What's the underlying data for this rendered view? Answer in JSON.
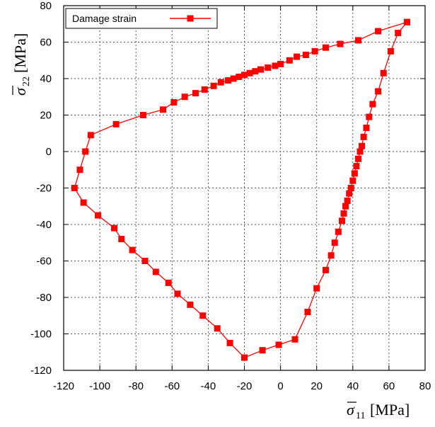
{
  "chart_data": {
    "type": "line",
    "xlim": [
      -120,
      80
    ],
    "ylim": [
      -120,
      80
    ],
    "x_ticks": [
      -120,
      -100,
      -80,
      -60,
      -40,
      -20,
      0,
      20,
      40,
      60,
      80
    ],
    "y_ticks": [
      -120,
      -100,
      -80,
      -60,
      -40,
      -20,
      0,
      20,
      40,
      60,
      80
    ],
    "x_tick_labels": [
      "-120",
      "-100",
      "-80",
      "-60",
      "-40",
      "-20",
      "0",
      "20",
      "40",
      "60",
      "80"
    ],
    "y_tick_labels": [
      "-120",
      "-100",
      "-80",
      "-60",
      "-40",
      "-20",
      "0",
      "20",
      "40",
      "60",
      "80"
    ],
    "xlabel": {
      "symbol": "σ",
      "subscript": "11",
      "unit": "[MPa]"
    },
    "ylabel": {
      "symbol": "σ",
      "subscript": "22",
      "unit": "[MPa]"
    },
    "grid": true,
    "grid_style": "dotted",
    "legend_position": "top-left",
    "series": [
      {
        "name": "Damage strain",
        "color": "#ff0000",
        "marker": "square",
        "points": [
          [
            70,
            71
          ],
          [
            65,
            65
          ],
          [
            61,
            55
          ],
          [
            57,
            43
          ],
          [
            54,
            33
          ],
          [
            51,
            26
          ],
          [
            49,
            19
          ],
          [
            47.5,
            13
          ],
          [
            46,
            8
          ],
          [
            45,
            3
          ],
          [
            44,
            0
          ],
          [
            43,
            -4
          ],
          [
            42,
            -8
          ],
          [
            41,
            -12
          ],
          [
            40,
            -16
          ],
          [
            39,
            -20
          ],
          [
            38,
            -23
          ],
          [
            37,
            -27
          ],
          [
            36,
            -30
          ],
          [
            35,
            -34
          ],
          [
            34,
            -38
          ],
          [
            32,
            -44
          ],
          [
            30,
            -50
          ],
          [
            28,
            -57
          ],
          [
            25,
            -65
          ],
          [
            20,
            -75
          ],
          [
            15,
            -88
          ],
          [
            8,
            -103
          ],
          [
            -1,
            -106
          ],
          [
            -10,
            -109
          ],
          [
            -20,
            -113
          ],
          [
            -28,
            -105
          ],
          [
            -35,
            -97
          ],
          [
            -43,
            -90
          ],
          [
            -50,
            -84
          ],
          [
            -57,
            -78
          ],
          [
            -62,
            -72
          ],
          [
            -69,
            -66
          ],
          [
            -75,
            -60
          ],
          [
            -82,
            -54
          ],
          [
            -88,
            -48
          ],
          [
            -92,
            -42
          ],
          [
            -101,
            -35
          ],
          [
            -109,
            -28
          ],
          [
            -114,
            -20
          ],
          [
            -111,
            -10
          ],
          [
            -108,
            0
          ],
          [
            -105,
            9
          ],
          [
            -91,
            15
          ],
          [
            -76,
            20
          ],
          [
            -65,
            23
          ],
          [
            -59,
            27
          ],
          [
            -53,
            30
          ],
          [
            -47,
            32
          ],
          [
            -42,
            34
          ],
          [
            -37,
            36
          ],
          [
            -33,
            38
          ],
          [
            -29,
            39
          ],
          [
            -26,
            40
          ],
          [
            -23,
            41
          ],
          [
            -20,
            42
          ],
          [
            -17,
            43
          ],
          [
            -14,
            44
          ],
          [
            -11,
            45
          ],
          [
            -7,
            46
          ],
          [
            -3,
            47
          ],
          [
            0,
            48
          ],
          [
            5,
            50
          ],
          [
            9,
            52
          ],
          [
            14,
            53
          ],
          [
            19,
            55
          ],
          [
            25,
            57
          ],
          [
            33,
            59
          ],
          [
            43,
            61
          ],
          [
            54,
            66
          ],
          [
            70,
            71
          ]
        ]
      }
    ]
  }
}
